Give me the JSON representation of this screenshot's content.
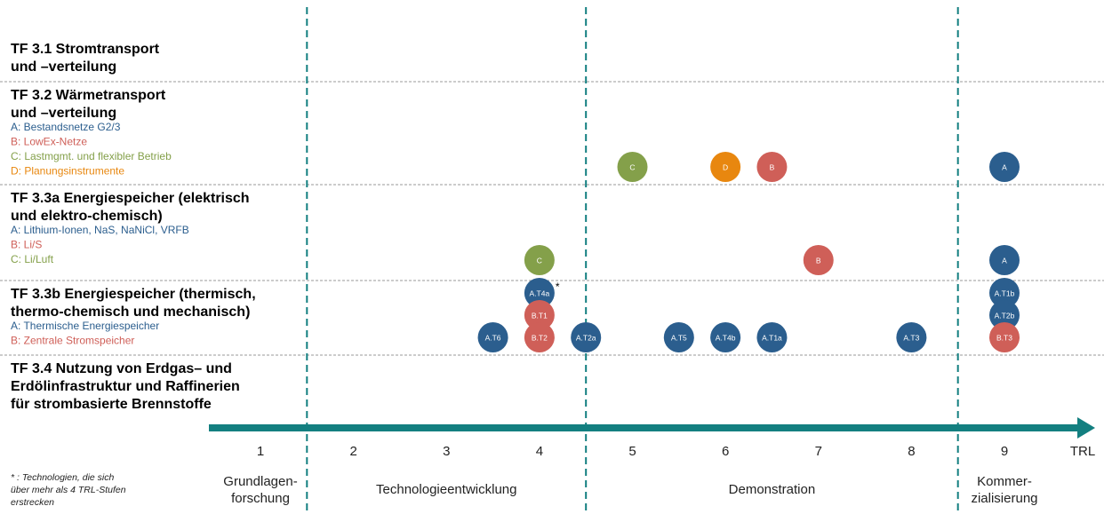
{
  "axis": {
    "label": "TRL",
    "ticks": [
      1,
      2,
      3,
      4,
      5,
      6,
      7,
      8,
      9
    ],
    "color": "#137f80"
  },
  "phases": [
    {
      "label": [
        "Grundlagen-",
        "forschung"
      ]
    },
    {
      "label": [
        "Technologieentwicklung"
      ]
    },
    {
      "label": [
        "Demonstration"
      ]
    },
    {
      "label": [
        "Kommer-",
        "zialisierung"
      ]
    }
  ],
  "phase_boundaries": [
    1.5,
    4.5,
    8.5
  ],
  "rows": [
    {
      "title": [
        "TF 3.1 Stromtransport",
        "und –verteilung"
      ],
      "legend": [],
      "markers": []
    },
    {
      "title": [
        "TF 3.2 Wärmetransport",
        "und –verteilung"
      ],
      "legend": [
        {
          "text": "A: Bestandsnetze G2/3",
          "color": "#2b5e8e"
        },
        {
          "text": "B: LowEx-Netze",
          "color": "#cf5f58"
        },
        {
          "text": "C: Lastmgmt. und flexibler Betrieb",
          "color": "#84a04a"
        },
        {
          "text": "D: Planungsinstrumente",
          "color": "#e8870f"
        }
      ],
      "markers": [
        {
          "label": "C",
          "trl": 5,
          "color": "#84a04a"
        },
        {
          "label": "D",
          "trl": 6,
          "color": "#e8870f"
        },
        {
          "label": "B",
          "trl": 6.5,
          "color": "#cf5f58"
        },
        {
          "label": "A",
          "trl": 9,
          "color": "#2b5e8e"
        }
      ]
    },
    {
      "title": [
        "TF 3.3a Energiespeicher (elektrisch",
        "und elektro-chemisch)"
      ],
      "legend": [
        {
          "text": "A: Lithium-Ionen, NaS, NaNiCl, VRFB",
          "color": "#2b5e8e"
        },
        {
          "text": "B: Li/S",
          "color": "#cf5f58"
        },
        {
          "text": "C: Li/Luft",
          "color": "#84a04a"
        }
      ],
      "markers": [
        {
          "label": "C",
          "trl": 4,
          "color": "#84a04a"
        },
        {
          "label": "B",
          "trl": 7,
          "color": "#cf5f58"
        },
        {
          "label": "A",
          "trl": 9,
          "color": "#2b5e8e"
        }
      ]
    },
    {
      "title": [
        "TF 3.3b Energiespeicher (thermisch,",
        "thermo-chemisch und mechanisch)"
      ],
      "legend": [
        {
          "text": "A: Thermische Energiespeicher",
          "color": "#2b5e8e"
        },
        {
          "text": "B: Zentrale Stromspeicher",
          "color": "#cf5f58"
        }
      ],
      "markers": [
        {
          "label": "A.T6",
          "trl": 3.5,
          "color": "#2b5e8e"
        },
        {
          "label": "A.T4a",
          "trl": 4,
          "color": "#2b5e8e",
          "note": "*"
        },
        {
          "label": "B.T1",
          "trl": 4,
          "color": "#cf5f58"
        },
        {
          "label": "B.T2",
          "trl": 4,
          "color": "#cf5f58"
        },
        {
          "label": "A.T2a",
          "trl": 4.5,
          "color": "#2b5e8e"
        },
        {
          "label": "A.T5",
          "trl": 5.5,
          "color": "#2b5e8e"
        },
        {
          "label": "A.T4b",
          "trl": 6,
          "color": "#2b5e8e"
        },
        {
          "label": "A.T1a",
          "trl": 6.5,
          "color": "#2b5e8e"
        },
        {
          "label": "A.T3",
          "trl": 8,
          "color": "#2b5e8e"
        },
        {
          "label": "A.T1b",
          "trl": 9,
          "color": "#2b5e8e"
        },
        {
          "label": "A.T2b",
          "trl": 9,
          "color": "#2b5e8e"
        },
        {
          "label": "B.T3",
          "trl": 9,
          "color": "#cf5f58"
        }
      ]
    },
    {
      "title": [
        "TF 3.4  Nutzung von Erdgas– und",
        "Erdölinfrastruktur und Raffinerien",
        "für strombasierte Brennstoffe"
      ],
      "legend": [],
      "markers": []
    }
  ],
  "footnote": [
    "* : Technologien, die sich",
    "über mehr als 4 TRL-Stufen",
    "erstrecken"
  ]
}
